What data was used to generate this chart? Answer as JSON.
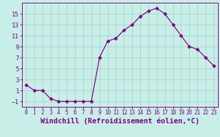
{
  "x": [
    0,
    1,
    2,
    3,
    4,
    5,
    6,
    7,
    8,
    9,
    10,
    11,
    12,
    13,
    14,
    15,
    16,
    17,
    18,
    19,
    20,
    21,
    22,
    23
  ],
  "y": [
    2.0,
    1.0,
    1.0,
    -0.5,
    -1.0,
    -1.0,
    -1.0,
    -1.0,
    -1.0,
    7.0,
    10.0,
    10.5,
    12.0,
    13.0,
    14.5,
    15.5,
    16.0,
    15.0,
    13.0,
    11.0,
    9.0,
    8.5,
    7.0,
    5.5
  ],
  "line_color": "#800080",
  "marker": "D",
  "marker_size": 2.5,
  "bg_color": "#c8eee8",
  "grid_color": "#a8d8d0",
  "xlabel": "Windchill (Refroidissement éolien,°C)",
  "yticks": [
    -1,
    1,
    3,
    5,
    7,
    9,
    11,
    13,
    15
  ],
  "xtick_labels": [
    "0",
    "1",
    "2",
    "3",
    "4",
    "5",
    "6",
    "7",
    "8",
    "9",
    "10",
    "11",
    "12",
    "13",
    "14",
    "15",
    "16",
    "17",
    "18",
    "19",
    "20",
    "21",
    "22",
    "23"
  ],
  "ylim": [
    -2,
    17
  ],
  "xlim": [
    -0.5,
    23.5
  ],
  "tick_color": "#800080",
  "xlabel_color": "#800080",
  "xlabel_fontsize": 7.5,
  "ytick_fontsize": 6.5,
  "xtick_fontsize": 5.5,
  "spine_color": "#800080",
  "axis_bg_color": "#c8eee8"
}
